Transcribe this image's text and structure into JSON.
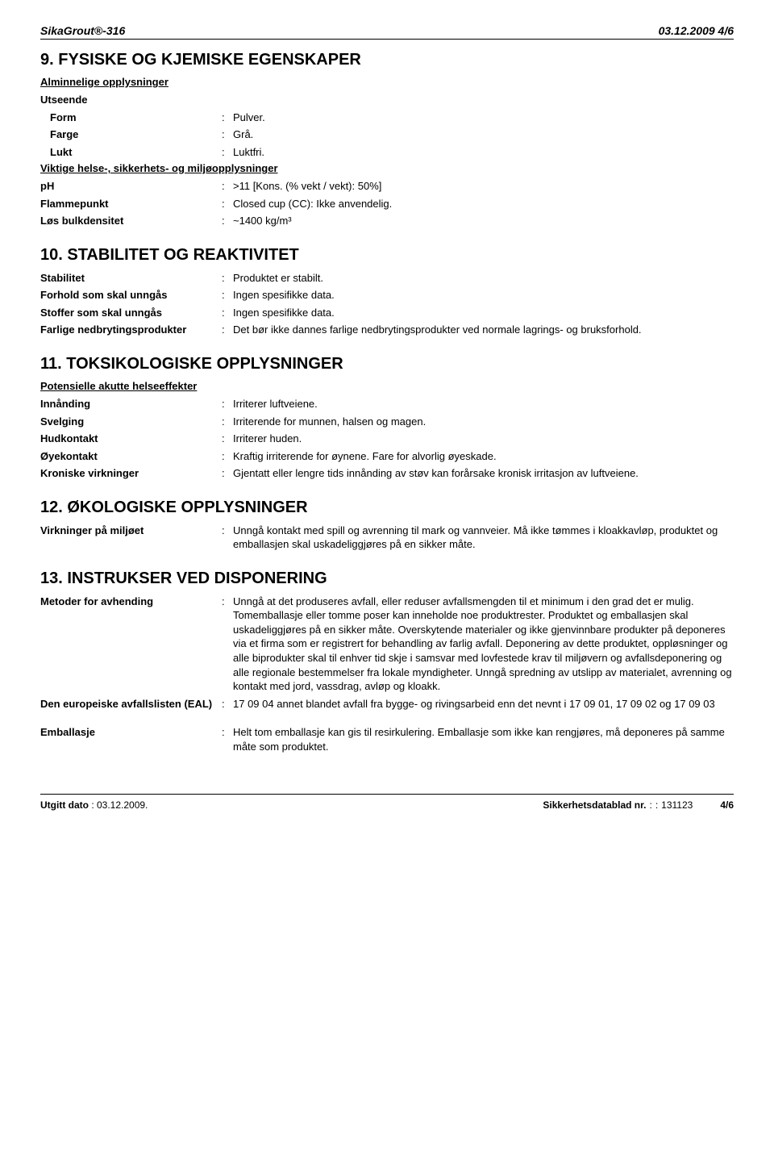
{
  "header": {
    "product": "SikaGrout®-316",
    "meta": "03.12.2009 4/6"
  },
  "sections": [
    {
      "number": "9.",
      "title": "FYSISKE OG KJEMISKE EGENSKAPER",
      "groups": [
        {
          "subheading": "Alminnelige opplysninger",
          "rows": [
            {
              "label": "Utseende",
              "value": null,
              "noColon": true
            },
            {
              "label": "Form",
              "value": "Pulver.",
              "indent": true
            },
            {
              "label": "Farge",
              "value": "Grå.",
              "indent": true
            },
            {
              "label": "Lukt",
              "value": "Luktfri.",
              "indent": true
            }
          ]
        },
        {
          "subheading": "Viktige helse-, sikkerhets- og miljøopplysninger",
          "rows": [
            {
              "label": "pH",
              "value": ">11 [Kons. (% vekt / vekt): 50%]"
            },
            {
              "label": "Flammepunkt",
              "value": "Closed cup (CC): Ikke anvendelig."
            },
            {
              "label": "Løs bulkdensitet",
              "value": "~1400 kg/m³"
            }
          ]
        }
      ]
    },
    {
      "number": "10.",
      "title": "STABILITET OG REAKTIVITET",
      "groups": [
        {
          "rows": [
            {
              "label": "Stabilitet",
              "value": "Produktet er stabilt."
            },
            {
              "label": "Forhold som skal unngås",
              "value": "Ingen spesifikke data."
            },
            {
              "label": "Stoffer som skal unngås",
              "value": "Ingen spesifikke data."
            },
            {
              "label": "Farlige nedbrytingsprodukter",
              "value": "Det bør ikke dannes farlige nedbrytingsprodukter ved normale lagrings- og bruksforhold."
            }
          ]
        }
      ]
    },
    {
      "number": "11.",
      "title": "TOKSIKOLOGISKE OPPLYSNINGER",
      "groups": [
        {
          "subheading": "Potensielle akutte helseeffekter",
          "rows": [
            {
              "label": "Innånding",
              "value": "Irriterer luftveiene."
            },
            {
              "label": "Svelging",
              "value": "Irriterende for munnen, halsen og magen."
            },
            {
              "label": "Hudkontakt",
              "value": "Irriterer huden."
            },
            {
              "label": "Øyekontakt",
              "value": "Kraftig irriterende for øynene. Fare for alvorlig øyeskade."
            },
            {
              "label": "Kroniske virkninger",
              "value": "Gjentatt eller lengre tids innånding av støv kan forårsake kronisk irritasjon av luftveiene."
            }
          ]
        }
      ]
    },
    {
      "number": "12.",
      "title": "ØKOLOGISKE OPPLYSNINGER",
      "groups": [
        {
          "rows": [
            {
              "label": "Virkninger på miljøet",
              "value": "Unngå kontakt med spill og avrenning til mark og vannveier. Må ikke tømmes i kloakkavløp, produktet og emballasjen skal uskadeliggjøres på en sikker måte."
            }
          ]
        }
      ]
    },
    {
      "number": "13.",
      "title": "INSTRUKSER VED DISPONERING",
      "groups": [
        {
          "rows": [
            {
              "label": "Metoder for avhending",
              "value": "Unngå at det produseres avfall, eller reduser avfallsmengden til et minimum i den grad det er mulig. Tomemballasje eller tomme poser kan inneholde noe produktrester. Produktet og emballasjen skal uskadeliggjøres på en sikker måte. Overskytende materialer og ikke gjenvinnbare produkter på deponeres via et firma som er registrert for behandling av farlig avfall. Deponering av dette produktet, oppløsninger og alle biprodukter skal til enhver tid skje i samsvar med lovfestede krav til miljøvern og avfallsdeponering og alle regionale bestemmelser fra lokale myndigheter. Unngå spredning av utslipp av materialet, avrenning og kontakt med jord, vassdrag, avløp og kloakk."
            },
            {
              "label": "Den europeiske avfallslisten (EAL)",
              "value": "17 09 04 annet blandet avfall fra bygge- og rivingsarbeid enn det nevnt i 17 09 01, 17 09 02 og 17 09 03"
            },
            {
              "label": "Emballasje",
              "value": "Helt tom emballasje kan gis til resirkulering. Emballasje som ikke kan rengjøres, må deponeres på samme måte som produktet.",
              "gapBefore": true
            }
          ]
        }
      ]
    }
  ],
  "footer": {
    "leftLabel": "Utgitt dato",
    "leftValue": "03.12.2009.",
    "rightLabel": "Sikkerhetsdatablad nr.",
    "rightValue": "131123",
    "page": "4/6"
  }
}
